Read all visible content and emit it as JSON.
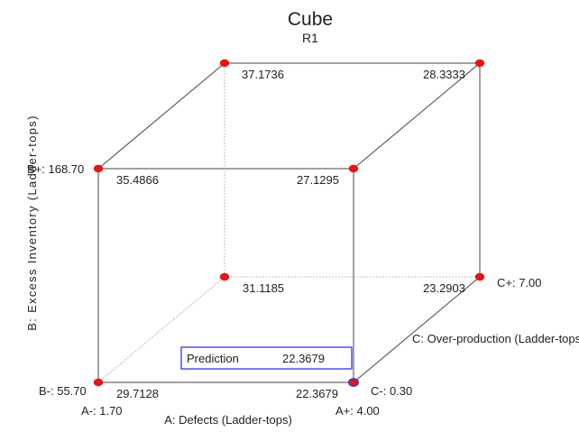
{
  "chart_data": {
    "type": "cube",
    "title": "Cube",
    "subtitle": "R1",
    "axes": {
      "A": {
        "label": "A: Defects (Ladder-tops)",
        "low_label": "A-: 1.70",
        "high_label": "A+: 4.00",
        "low": 1.7,
        "high": 4.0
      },
      "B": {
        "label": "B: Excess Inventory (Ladder-tops)",
        "low_label": "B-: 55.70",
        "high_label": "B+: 168.70",
        "low": 55.7,
        "high": 168.7
      },
      "C": {
        "label": "C: Over-production (Ladder-tops)",
        "low_label": "C-: 0.30",
        "high_label": "C+: 7.00",
        "low": 0.3,
        "high": 7.0
      }
    },
    "corners": [
      {
        "A": -1,
        "B": -1,
        "C": -1,
        "value": 29.7128,
        "label": "29.7128"
      },
      {
        "A": 1,
        "B": -1,
        "C": -1,
        "value": 22.3679,
        "label": "22.3679"
      },
      {
        "A": -1,
        "B": 1,
        "C": -1,
        "value": 35.4866,
        "label": "35.4866"
      },
      {
        "A": 1,
        "B": 1,
        "C": -1,
        "value": 27.1295,
        "label": "27.1295"
      },
      {
        "A": -1,
        "B": -1,
        "C": 1,
        "value": 31.1185,
        "label": "31.1185"
      },
      {
        "A": 1,
        "B": -1,
        "C": 1,
        "value": 23.2903,
        "label": "23.2903"
      },
      {
        "A": -1,
        "B": 1,
        "C": 1,
        "value": 37.1736,
        "label": "37.1736"
      },
      {
        "A": 1,
        "B": 1,
        "C": 1,
        "value": 28.3333,
        "label": "28.3333"
      }
    ],
    "prediction": {
      "label": "Prediction",
      "value": "22.3679"
    },
    "colors": {
      "point": "#ee1111",
      "edge": "#444444",
      "hidden_edge": "#aaaaaa",
      "prediction_border": "#4d4dff",
      "selected_point": "#3344cc"
    }
  }
}
